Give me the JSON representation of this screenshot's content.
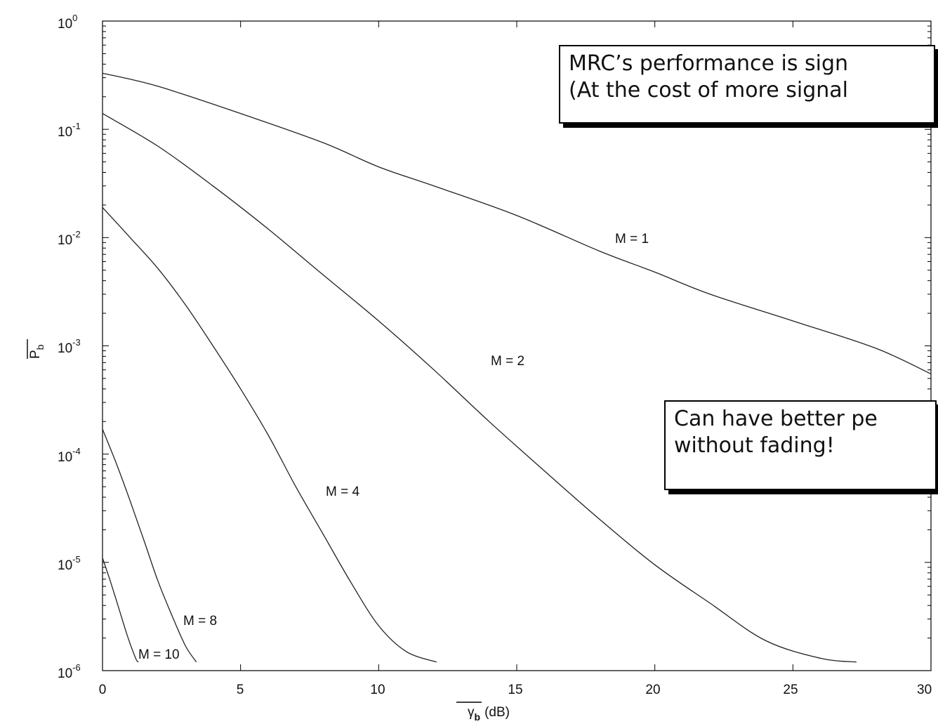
{
  "chart_data": {
    "type": "line",
    "xlabel": "γ",
    "xlabel_sub": "b",
    "xlabel_unit": "(dB)",
    "ylabel": "P",
    "ylabel_sub": "b",
    "xlim": [
      0,
      30
    ],
    "ylim": [
      1e-06,
      1
    ],
    "yscale": "log",
    "grid": false,
    "x_ticks": [
      "0",
      "5",
      "10",
      "15",
      "20",
      "25",
      "30"
    ],
    "y_ticks": [
      {
        "base": "10",
        "exp": "0"
      },
      {
        "base": "10",
        "exp": "-1"
      },
      {
        "base": "10",
        "exp": "-2"
      },
      {
        "base": "10",
        "exp": "-3"
      },
      {
        "base": "10",
        "exp": "-4"
      },
      {
        "base": "10",
        "exp": "-5"
      },
      {
        "base": "10",
        "exp": "-6"
      }
    ],
    "series": [
      {
        "name": "M = 1",
        "x": [
          0,
          2,
          5,
          8,
          10,
          12,
          15,
          18,
          20,
          22,
          25,
          28,
          30
        ],
        "y": [
          0.33,
          0.25,
          0.14,
          0.075,
          0.045,
          0.03,
          0.016,
          0.0075,
          0.0048,
          0.003,
          0.0017,
          0.00095,
          0.00055
        ]
      },
      {
        "name": "M = 2",
        "x": [
          0,
          2,
          4,
          6,
          8,
          10,
          12,
          14,
          16,
          18,
          20,
          22,
          24,
          26,
          27.3
        ],
        "y": [
          0.14,
          0.07,
          0.03,
          0.012,
          0.0045,
          0.0017,
          0.0006,
          0.0002,
          7e-05,
          2.5e-05,
          9.5e-06,
          4.2e-06,
          1.9e-06,
          1.3e-06,
          1.2e-06
        ]
      },
      {
        "name": "M = 4",
        "x": [
          0,
          1,
          2,
          3,
          4,
          5,
          6,
          7,
          8,
          9,
          10,
          11,
          12.1
        ],
        "y": [
          0.019,
          0.01,
          0.0052,
          0.0024,
          0.001,
          0.0004,
          0.00015,
          5e-05,
          1.8e-05,
          6.5e-06,
          2.6e-06,
          1.5e-06,
          1.2e-06
        ]
      },
      {
        "name": "M = 8",
        "x": [
          0,
          0.5,
          1,
          1.5,
          2,
          2.5,
          3,
          3.4
        ],
        "y": [
          0.00017,
          8.2e-05,
          3.7e-05,
          1.6e-05,
          6.8e-06,
          3.3e-06,
          1.7e-06,
          1.2e-06
        ]
      },
      {
        "name": "M = 10",
        "x": [
          0,
          0.3,
          0.6,
          0.9,
          1.2,
          1.3
        ],
        "y": [
          1.1e-05,
          6.5e-06,
          3.7e-06,
          2.1e-06,
          1.3e-06,
          1.2e-06
        ]
      }
    ],
    "annotations": [
      {
        "text": "M = 1",
        "x": 18.7,
        "y": 0.0098
      },
      {
        "text": "M = 2",
        "x": 14.2,
        "y": 0.00096
      },
      {
        "text": "M = 4",
        "x": 8.1,
        "y": 1.35e-05
      },
      {
        "text": "M = 8",
        "x": 2.9,
        "y": 1.5e-06
      },
      {
        "text": "M = 10",
        "x": 1.3,
        "y": 7.8e-07
      }
    ]
  },
  "callouts": {
    "mrc": {
      "line1": "MRC’s performance is sign",
      "line2": "(At the cost of more signal"
    },
    "fading": {
      "line1": "Can have better pe",
      "line2": "without fading!"
    }
  }
}
